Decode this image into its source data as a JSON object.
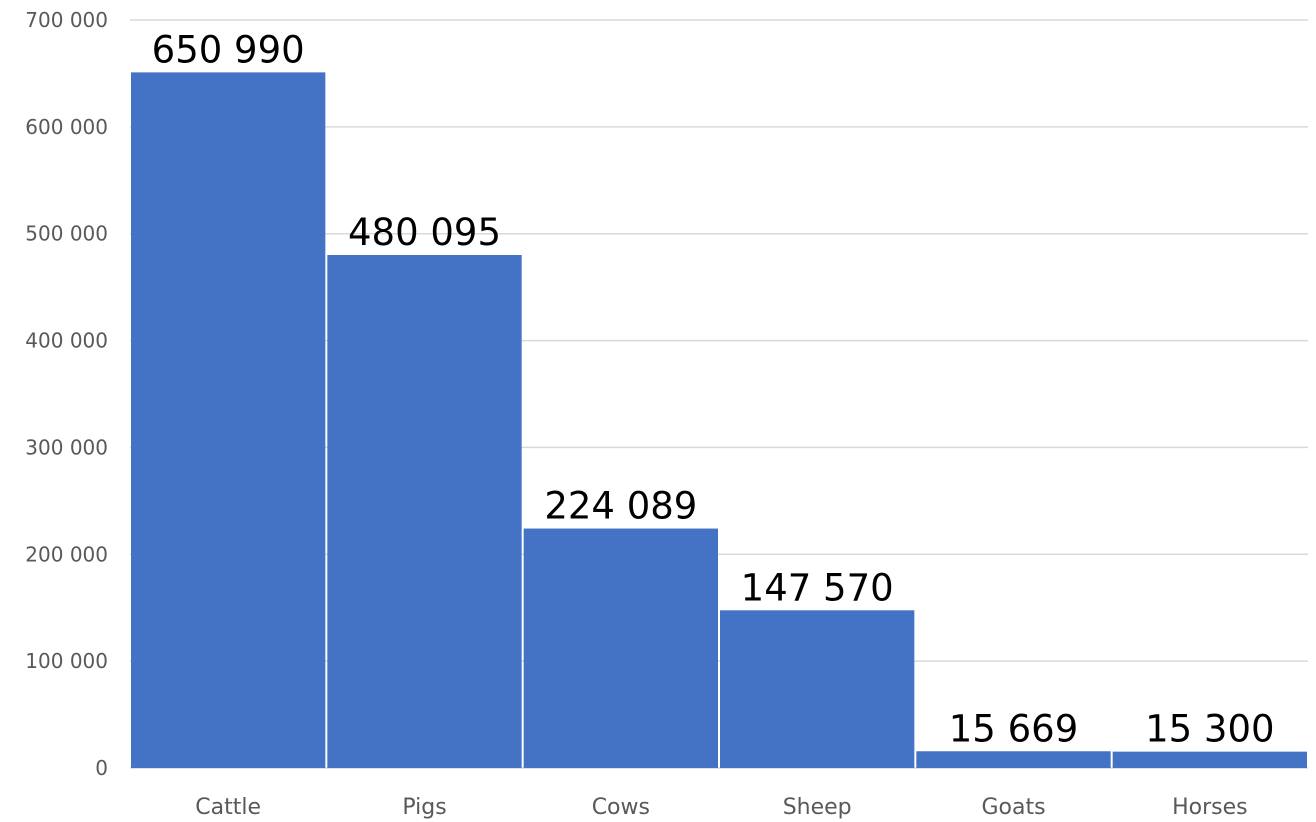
{
  "chart_data": {
    "type": "bar",
    "categories": [
      "Cattle",
      "Pigs",
      "Cows",
      "Sheep",
      "Goats",
      "Horses"
    ],
    "values": [
      650990,
      480095,
      224089,
      147570,
      15669,
      15300
    ],
    "data_labels": [
      "650 990",
      "480 095",
      "224 089",
      "147 570",
      "15 669",
      "15 300"
    ],
    "ylim": [
      0,
      700000
    ],
    "yticks": [
      0,
      100000,
      200000,
      300000,
      400000,
      500000,
      600000,
      700000
    ],
    "ytick_labels": [
      "0",
      "100 000",
      "200 000",
      "300 000",
      "400 000",
      "500 000",
      "600 000",
      "700 000"
    ],
    "grid": true,
    "legend": "none",
    "colors": {
      "bar": "#4472c4",
      "grid": "#d9d9d9",
      "tick_text": "#595959",
      "label_text": "#000000"
    }
  }
}
